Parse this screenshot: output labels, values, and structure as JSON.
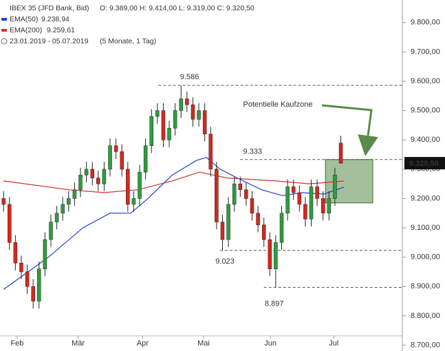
{
  "chart_data": {
    "type": "candlestick",
    "title": "IBEX 35 (JFD Bank, Bid)",
    "ohlc_label": "O: 9.389,00  H: 9.414,00  L: 9.319,00  C: 9.320,50",
    "period": "23.01.2019 - 05.07.2019",
    "period_note": "(5 Monate, 1 Tag)",
    "up_color": "#2e9e3e",
    "down_color": "#d9261c",
    "open": [
      9200,
      9180,
      9050,
      8980,
      8950,
      8900,
      8850,
      8960,
      9060,
      9120,
      9150,
      9180,
      9200,
      9230,
      9280,
      9300,
      9270,
      9250,
      9300,
      9380,
      9360,
      9300,
      9180,
      9200,
      9290,
      9380,
      9480,
      9500,
      9400,
      9440,
      9500,
      9540,
      9520,
      9470,
      9500,
      9420,
      9300,
      9120,
      9060,
      9180,
      9250,
      9230,
      9200,
      9150,
      9110,
      9060,
      8960,
      9050,
      9150,
      9240,
      9220,
      9180,
      9130,
      9240,
      9200,
      9150,
      9200,
      9389
    ],
    "high": [
      9225,
      9205,
      9075,
      9005,
      8975,
      8925,
      8985,
      9085,
      9145,
      9175,
      9205,
      9225,
      9255,
      9305,
      9325,
      9325,
      9295,
      9325,
      9405,
      9405,
      9385,
      9325,
      9225,
      9315,
      9405,
      9505,
      9525,
      9525,
      9465,
      9525,
      9586,
      9565,
      9545,
      9525,
      9525,
      9445,
      9325,
      9145,
      9205,
      9275,
      9275,
      9255,
      9225,
      9175,
      9135,
      9085,
      9075,
      9175,
      9265,
      9265,
      9245,
      9205,
      9265,
      9265,
      9225,
      9225,
      9305,
      9414
    ],
    "low": [
      9155,
      9025,
      8955,
      8925,
      8875,
      8825,
      8825,
      8935,
      9035,
      9095,
      9125,
      9155,
      9175,
      9205,
      9255,
      9245,
      9225,
      9225,
      9275,
      9335,
      9275,
      9155,
      9155,
      9175,
      9265,
      9355,
      9455,
      9375,
      9375,
      9415,
      9475,
      9495,
      9445,
      9445,
      9395,
      9275,
      9095,
      9023,
      9035,
      9155,
      9205,
      9175,
      9125,
      9085,
      9035,
      8935,
      8897,
      9025,
      9125,
      9195,
      9155,
      9105,
      9105,
      9175,
      9125,
      9125,
      9175,
      9319
    ],
    "close": [
      9180,
      9050,
      8980,
      8950,
      8900,
      8850,
      8960,
      9060,
      9120,
      9150,
      9180,
      9200,
      9230,
      9280,
      9300,
      9270,
      9250,
      9300,
      9380,
      9360,
      9300,
      9180,
      9200,
      9290,
      9380,
      9480,
      9500,
      9400,
      9440,
      9500,
      9540,
      9520,
      9470,
      9500,
      9420,
      9300,
      9120,
      9060,
      9180,
      9250,
      9230,
      9200,
      9150,
      9110,
      9060,
      8960,
      9050,
      9150,
      9240,
      9220,
      9180,
      9130,
      9240,
      9200,
      9150,
      9200,
      9280,
      9320.5
    ],
    "series": [
      {
        "name": "EMA(50)",
        "value_label": "9.238,94",
        "color": "#2040d0",
        "x": [
          0,
          7.6,
          13.4,
          18,
          21.5,
          24.4,
          28.5,
          32.6,
          34.3,
          36.6,
          39.5,
          43.6,
          47.1,
          50.6,
          54.1,
          57.5
        ],
        "values": [
          8890,
          9000,
          9100,
          9150,
          9150,
          9200,
          9280,
          9330,
          9340,
          9300,
          9270,
          9230,
          9210,
          9220,
          9215,
          9238.94
        ]
      },
      {
        "name": "EMA(200)",
        "value_label": "9.259,61",
        "color": "#d03030",
        "x": [
          0,
          11,
          17,
          22.7,
          28.5,
          33.1,
          37.8,
          46,
          51.7,
          57.5
        ],
        "values": [
          9260,
          9230,
          9220,
          9230,
          9260,
          9290,
          9270,
          9260,
          9250,
          9259.61
        ]
      }
    ],
    "levels": [
      {
        "value": 9586,
        "label": "9.586",
        "x": 26.2
      },
      {
        "value": 9333,
        "label": "9.333",
        "x": 40
      },
      {
        "value": 9023,
        "label": "9.023",
        "x": 36.6
      },
      {
        "value": 8897,
        "label": "8.897",
        "x": 44
      }
    ],
    "zone": {
      "label": "Potentielle Kaufzone",
      "x": [
        54.4,
        62.4
      ],
      "y": [
        9185,
        9333
      ],
      "color": "#5a8a4a"
    },
    "last": {
      "value": 9320.5,
      "label": "9.320,50"
    },
    "xlim": [
      -0.6,
      67.4
    ],
    "xticks": [
      {
        "value": 2.3,
        "label": "Feb"
      },
      {
        "value": 12.6,
        "label": "Mär"
      },
      {
        "value": 23.5,
        "label": "Apr"
      },
      {
        "value": 33.8,
        "label": "Mai"
      },
      {
        "value": 45.1,
        "label": "Jun"
      },
      {
        "value": 55.8,
        "label": "Jul"
      }
    ],
    "ylim": [
      8680,
      9877
    ],
    "yticks": [
      {
        "value": 8700,
        "label": "8.700,00"
      },
      {
        "value": 8800,
        "label": "8.800,00"
      },
      {
        "value": 8900,
        "label": "8.900,00"
      },
      {
        "value": 9000,
        "label": "9.000,00"
      },
      {
        "value": 9100,
        "label": "9.100,00"
      },
      {
        "value": 9200,
        "label": "9.200,00"
      },
      {
        "value": 9300,
        "label": "9.300,00"
      },
      {
        "value": 9400,
        "label": "9.400,00"
      },
      {
        "value": 9500,
        "label": "9.500,00"
      },
      {
        "value": 9600,
        "label": "9.600,00"
      },
      {
        "value": 9700,
        "label": "9.700,00"
      },
      {
        "value": 9800,
        "label": "9.800,00"
      }
    ]
  }
}
